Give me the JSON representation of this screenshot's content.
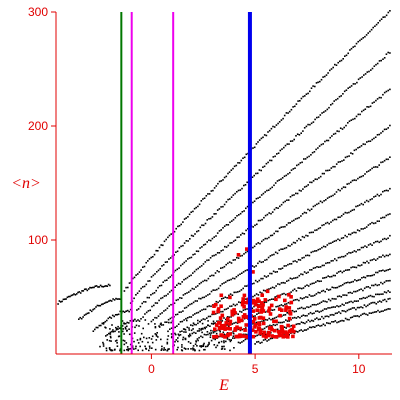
{
  "chart_data": {
    "type": "scatter",
    "title": "",
    "xlabel": "E",
    "ylabel": "<n>",
    "xlim": [
      -4.6,
      11.6
    ],
    "ylim": [
      0,
      300
    ],
    "x_ticks": [
      0,
      5,
      10
    ],
    "y_ticks": [
      100,
      200,
      300
    ],
    "x_tick_labels": [
      "0",
      "5",
      "10"
    ],
    "y_tick_labels": [
      "100",
      "200",
      "300"
    ],
    "grid": false,
    "legend": "none",
    "colors": {
      "axes": "#e00000",
      "black_points": "#000000",
      "red_points": "#ee0000",
      "green_line": "#007700",
      "magenta_line": "#ee00ee",
      "blue_line": "#0000ee"
    },
    "vertical_lines": [
      {
        "x": -1.45,
        "color": "#007700",
        "width": 2
      },
      {
        "x": -0.95,
        "color": "#ee00ee",
        "width": 2
      },
      {
        "x": 1.05,
        "color": "#ee00ee",
        "width": 2
      },
      {
        "x": 4.75,
        "color": "#0000ee",
        "width": 4
      }
    ],
    "series": [
      {
        "label_key": "s1",
        "kind": "curve",
        "x_start": -4.5,
        "x_end": -2.0,
        "y_start": 45,
        "y_end": 60,
        "shape": "arc",
        "points": 40
      },
      {
        "label_key": "s2",
        "kind": "curve",
        "x_start": -3.5,
        "x_end": -1.5,
        "y_start": 30,
        "y_end": 48,
        "shape": "arc",
        "points": 30
      },
      {
        "label_key": "s3",
        "kind": "curve",
        "x_start": -2.8,
        "x_end": -1.0,
        "y_start": 20,
        "y_end": 38,
        "shape": "arc",
        "points": 26
      },
      {
        "label_key": "s4",
        "kind": "curve",
        "x_start": -2.2,
        "x_end": -0.5,
        "y_start": 15,
        "y_end": 30,
        "shape": "arc",
        "points": 24
      },
      {
        "label_key": "b1",
        "kind": "band",
        "x_start": -1.3,
        "x_end": 11.5,
        "y_start": 55,
        "y_end": 300,
        "points": 160
      },
      {
        "label_key": "b2",
        "kind": "band",
        "x_start": -1.0,
        "x_end": 11.5,
        "y_start": 45,
        "y_end": 265,
        "points": 150
      },
      {
        "label_key": "b3",
        "kind": "band",
        "x_start": -0.7,
        "x_end": 11.5,
        "y_start": 38,
        "y_end": 232,
        "points": 145
      },
      {
        "label_key": "b4",
        "kind": "band",
        "x_start": -0.4,
        "x_end": 11.5,
        "y_start": 33,
        "y_end": 200,
        "points": 140
      },
      {
        "label_key": "b5",
        "kind": "band",
        "x_start": 0.0,
        "x_end": 11.5,
        "y_start": 28,
        "y_end": 172,
        "points": 135
      },
      {
        "label_key": "b6",
        "kind": "band",
        "x_start": 0.4,
        "x_end": 11.5,
        "y_start": 24,
        "y_end": 145,
        "points": 130
      },
      {
        "label_key": "b7",
        "kind": "band",
        "x_start": 0.8,
        "x_end": 11.5,
        "y_start": 20,
        "y_end": 122,
        "points": 125
      },
      {
        "label_key": "b8",
        "kind": "band",
        "x_start": 1.3,
        "x_end": 11.5,
        "y_start": 18,
        "y_end": 103,
        "points": 120
      },
      {
        "label_key": "b9",
        "kind": "band",
        "x_start": 1.8,
        "x_end": 11.5,
        "y_start": 16,
        "y_end": 88,
        "points": 115
      },
      {
        "label_key": "b10",
        "kind": "band",
        "x_start": 2.3,
        "x_end": 11.5,
        "y_start": 14,
        "y_end": 75,
        "points": 110
      },
      {
        "label_key": "b11",
        "kind": "band",
        "x_start": 2.9,
        "x_end": 11.5,
        "y_start": 12,
        "y_end": 64,
        "points": 100
      },
      {
        "label_key": "b12",
        "kind": "band",
        "x_start": 3.5,
        "x_end": 11.5,
        "y_start": 11,
        "y_end": 55,
        "points": 95
      },
      {
        "label_key": "b13",
        "kind": "band",
        "x_start": 4.2,
        "x_end": 11.5,
        "y_start": 10,
        "y_end": 48,
        "points": 90
      },
      {
        "label_key": "b14",
        "kind": "band",
        "x_start": 5.0,
        "x_end": 11.5,
        "y_start": 9,
        "y_end": 40,
        "points": 80
      }
    ],
    "low_cluster": {
      "x_range": [
        -2.5,
        4.0
      ],
      "y_range": [
        3,
        30
      ],
      "points": 260
    },
    "red_cluster": {
      "x_range": [
        3.0,
        6.9
      ],
      "y_range": [
        15,
        52
      ],
      "points": 170,
      "outliers": [
        [
          4.2,
          87
        ],
        [
          4.6,
          92
        ],
        [
          4.9,
          72
        ],
        [
          4.5,
          45
        ],
        [
          5.6,
          55
        ]
      ]
    }
  }
}
